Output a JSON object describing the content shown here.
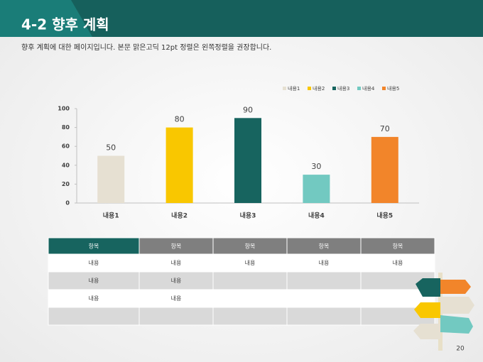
{
  "header": {
    "title": "4-2 향후 계획"
  },
  "subtitle": "향후 계획에 대한 페이지입니다. 본문 맑은고딕 12pt 정렬은 왼쪽정렬을 권장합니다.",
  "chart_data": {
    "type": "bar",
    "categories": [
      "내용1",
      "내용2",
      "내용3",
      "내용4",
      "내용5"
    ],
    "values": [
      50,
      80,
      90,
      30,
      70
    ],
    "colors": [
      "#e6e0d2",
      "#f9c700",
      "#17645f",
      "#72c9c1",
      "#f2852a"
    ],
    "ylim": [
      0,
      100
    ],
    "yticks": [
      0,
      20,
      40,
      60,
      80,
      100
    ],
    "grid": false,
    "legend": "top-right"
  },
  "table": {
    "header": [
      "항목",
      "항목",
      "항목",
      "항목",
      "항목"
    ],
    "rows": [
      [
        "내용",
        "내용",
        "내용",
        "내용",
        "내용"
      ],
      [
        "내용",
        "내용",
        null,
        null,
        null
      ],
      [
        "내용",
        "내용",
        null,
        null,
        null
      ],
      [
        null,
        null,
        null,
        null,
        null
      ]
    ]
  },
  "page_number": "20"
}
